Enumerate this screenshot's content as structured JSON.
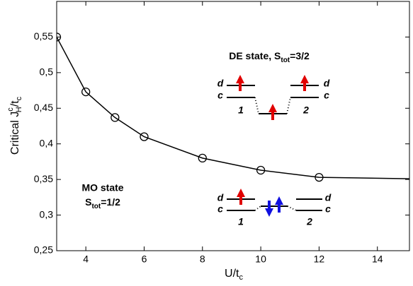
{
  "chart_data": {
    "type": "line",
    "xlabel": [
      "U/t",
      "c"
    ],
    "ylabel": [
      "Critical J",
      "c",
      "H",
      "/t",
      "c"
    ],
    "xlim": [
      3,
      15.1
    ],
    "ylim": [
      0.25,
      0.6
    ],
    "xticks": [
      4,
      6,
      8,
      10,
      12,
      14
    ],
    "yticks": [
      {
        "value": 0.25,
        "label": "0,25"
      },
      {
        "value": 0.3,
        "label": "0,3"
      },
      {
        "value": 0.35,
        "label": "0,35"
      },
      {
        "value": 0.4,
        "label": "0,4"
      },
      {
        "value": 0.45,
        "label": "0,45"
      },
      {
        "value": 0.5,
        "label": "0,5"
      },
      {
        "value": 0.55,
        "label": "0,55"
      }
    ],
    "series": [
      {
        "style": "line",
        "color": "#000000",
        "x": [
          3,
          4,
          5,
          6,
          8,
          10,
          12,
          15.1
        ],
        "values": [
          0.55,
          0.473,
          0.437,
          0.41,
          0.38,
          0.363,
          0.353,
          0.351
        ]
      },
      {
        "style": "markers",
        "color": "#000000",
        "x": [
          3,
          4,
          5,
          6,
          8,
          10,
          12
        ],
        "values": [
          0.55,
          0.473,
          0.437,
          0.41,
          0.38,
          0.363,
          0.353
        ]
      }
    ],
    "annotations": {
      "de_title": [
        "DE state, S",
        "tot",
        "=3/2"
      ],
      "mo_title": "MO state",
      "mo_subtitle": [
        "S",
        "tot",
        "=1/2"
      ],
      "de_d1": "d",
      "de_c1": "c",
      "de_n1": "1",
      "de_d2": "d",
      "de_c2": "c",
      "de_n2": "2",
      "mo_d1": "d",
      "mo_c1": "c",
      "mo_n1": "1",
      "mo_d2": "d",
      "mo_c2": "c",
      "mo_n2": "2"
    }
  }
}
